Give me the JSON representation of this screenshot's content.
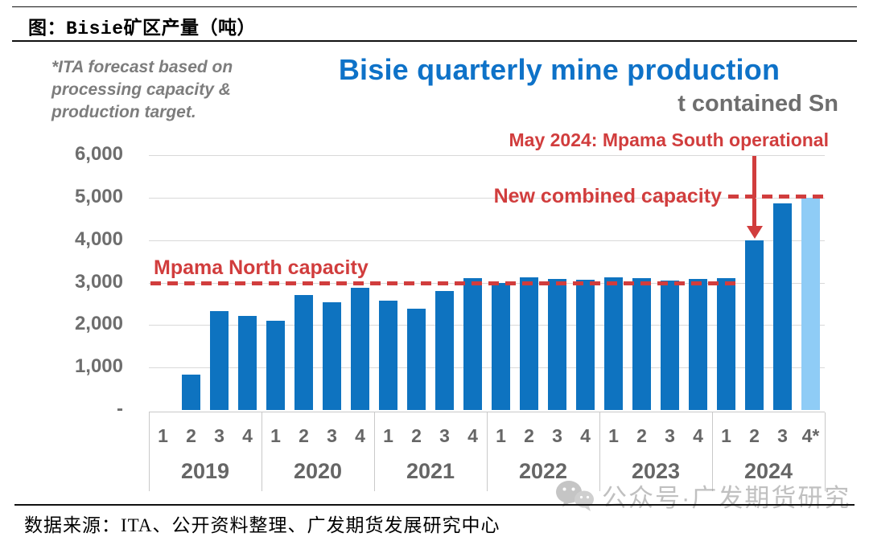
{
  "page": {
    "header_title": "图：Bisie矿区产量（吨）",
    "source_line": "数据来源：ITA、公开资料整理、广发期货发展研究中心",
    "watermark_text": "公众号·广发期货研究"
  },
  "chart": {
    "title": "Bisie quarterly mine production",
    "subtitle": "t contained Sn",
    "note_lines": [
      "*ITA forecast based on",
      "processing capacity &",
      "production target."
    ],
    "annotation_bold": "May 2024:",
    "annotation_rest": " Mpama South operational"
  },
  "chart_data": {
    "type": "bar",
    "title": "Bisie quarterly mine production",
    "subtitle": "t contained Sn",
    "unit": "t contained Sn",
    "ylim": [
      0,
      6000
    ],
    "ytick_step": 1000,
    "ytick_labels": [
      "-",
      "1,000",
      "2,000",
      "3,000",
      "4,000",
      "5,000",
      "6,000"
    ],
    "grid": true,
    "bar_color": "#0e73c0",
    "forecast_bar_color": "#8fccf6",
    "reference_color": "#d13d3d",
    "title_color": "#0e72c8",
    "groups": [
      {
        "year": "2019",
        "quarters": [
          "1",
          "2",
          "3",
          "4"
        ],
        "values": [
          0,
          830,
          2320,
          2210
        ]
      },
      {
        "year": "2020",
        "quarters": [
          "1",
          "2",
          "3",
          "4"
        ],
        "values": [
          2100,
          2700,
          2530,
          2870
        ]
      },
      {
        "year": "2021",
        "quarters": [
          "1",
          "2",
          "3",
          "4"
        ],
        "values": [
          2580,
          2380,
          2810,
          3100
        ]
      },
      {
        "year": "2022",
        "quarters": [
          "1",
          "2",
          "3",
          "4"
        ],
        "values": [
          3000,
          3130,
          3080,
          3060
        ]
      },
      {
        "year": "2023",
        "quarters": [
          "1",
          "2",
          "3",
          "4"
        ],
        "values": [
          3130,
          3110,
          3040,
          3080
        ]
      },
      {
        "year": "2024",
        "quarters": [
          "1",
          "2",
          "3",
          "4*"
        ],
        "values": [
          3100,
          4000,
          4870,
          5000
        ],
        "last_is_forecast": true
      }
    ],
    "reference_lines": [
      {
        "label": "Mpama North capacity",
        "value": 3000
      },
      {
        "label": "New combined capacity",
        "value": 5000
      }
    ],
    "annotation": "May 2024: Mpama South operational",
    "annotation_target": {
      "year": "2024",
      "quarter": "2"
    }
  }
}
